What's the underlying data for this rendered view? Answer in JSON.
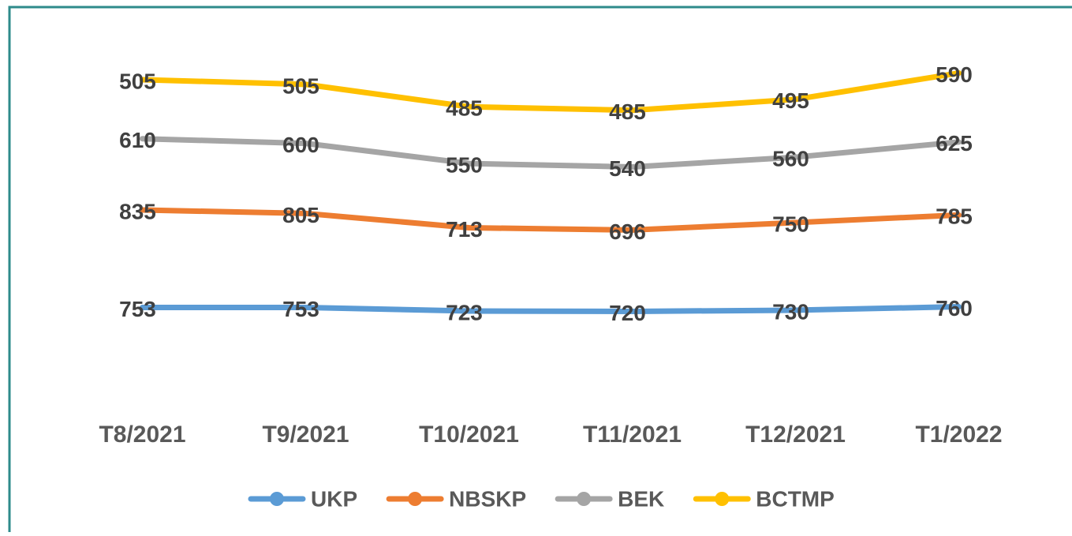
{
  "chart_data": {
    "type": "line",
    "stacked": true,
    "categories": [
      "T8/2021",
      "T9/2021",
      "T10/2021",
      "T11/2021",
      "T12/2021",
      "T1/2022"
    ],
    "series": [
      {
        "name": "UKP",
        "color": "#5b9bd5",
        "values": [
          753,
          753,
          723,
          720,
          730,
          760
        ]
      },
      {
        "name": "NBSKP",
        "color": "#ed7d31",
        "values": [
          835,
          805,
          713,
          696,
          750,
          785
        ]
      },
      {
        "name": "BEK",
        "color": "#a5a5a5",
        "values": [
          610,
          600,
          550,
          540,
          560,
          625
        ]
      },
      {
        "name": "BCTMP",
        "color": "#ffc000",
        "values": [
          505,
          505,
          485,
          485,
          495,
          590
        ]
      }
    ],
    "ylim": [
      0,
      3000
    ],
    "legend": "bottom"
  }
}
